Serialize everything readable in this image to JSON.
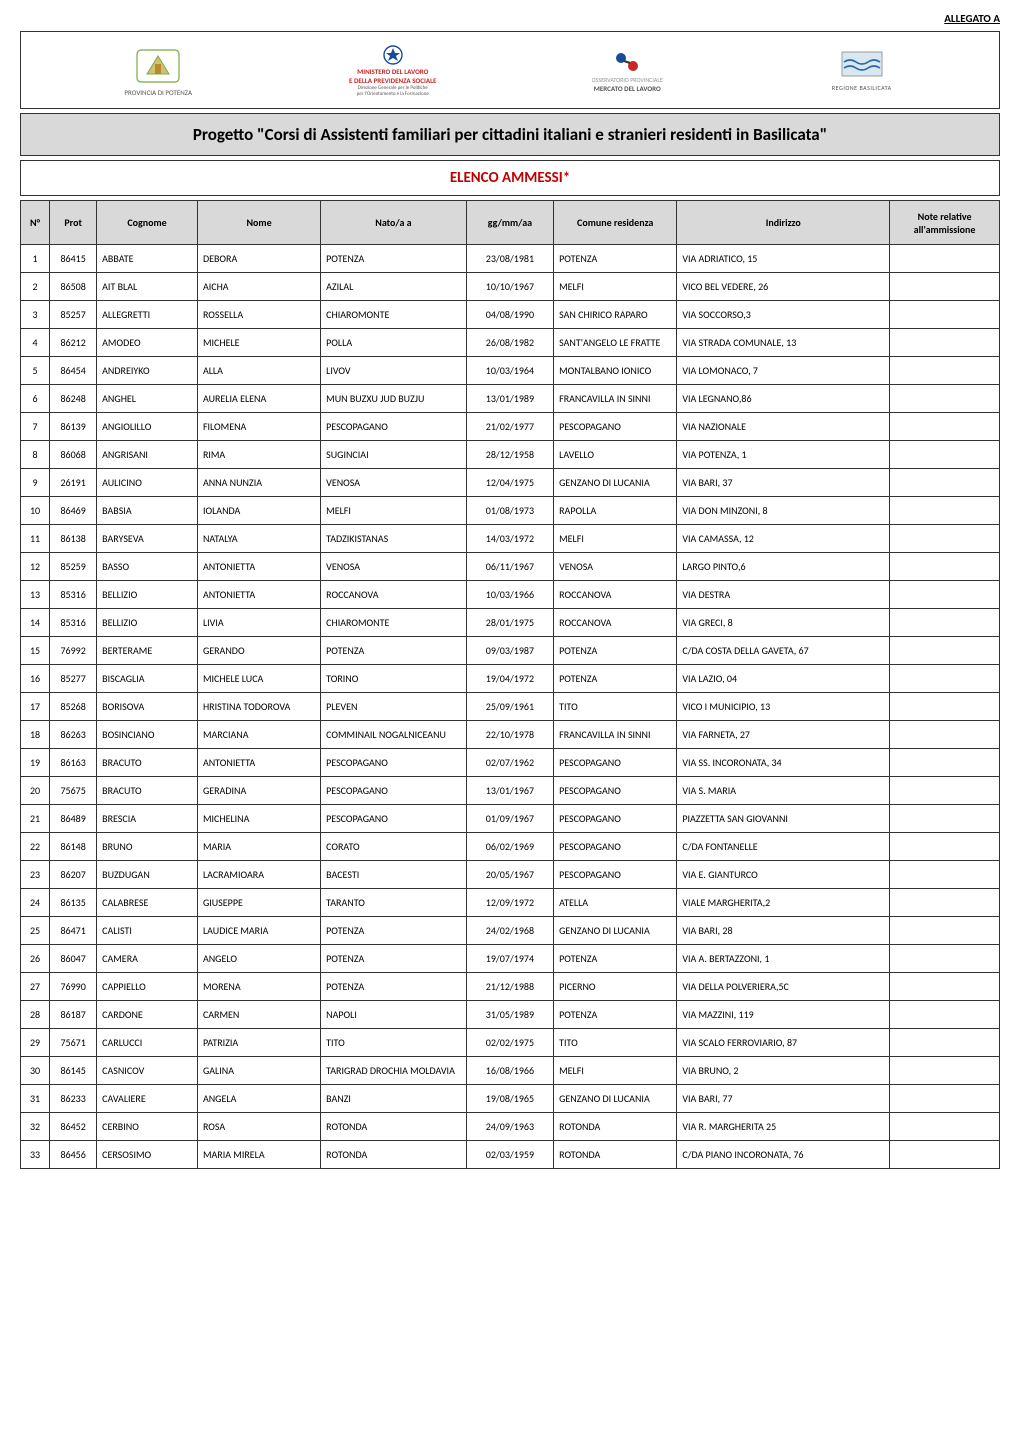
{
  "allegato": "ALLEGATO A",
  "logos": {
    "provincia_caption": "PROVINCIA DI POTENZA",
    "ministero_line1": "MINISTERO DEL LAVORO",
    "ministero_line2": "E DELLA PREVIDENZA SOCIALE",
    "ministero_line3": "Direzione Generale per le Politiche",
    "ministero_line4": "per l'Orientamento e la Formazione",
    "mercato_line1": "OSSERVATORIO PROVINCIALE",
    "mercato_line2": "MERCATO DEL LAVORO",
    "regione_caption": "REGIONE BASILICATA"
  },
  "title": "Progetto \"Corsi di Assistenti familiari per cittadini italiani e stranieri residenti in Basilicata\"",
  "subtitle": "ELENCO AMMESSI*",
  "colors": {
    "header_bg": "#d9d9d9",
    "border": "#333333",
    "subtitle_text": "#c00000",
    "page_bg": "#ffffff"
  },
  "table": {
    "columns": [
      "N°",
      "Prot",
      "Cognome",
      "Nome",
      "Nato/a  a",
      "gg/mm/aa",
      "Comune residenza",
      "Indirizzo",
      "Note relative all'ammissione"
    ],
    "rows": [
      [
        "1",
        "86415",
        "ABBATE",
        "DEBORA",
        "POTENZA",
        "23/08/1981",
        "POTENZA",
        "VIA  ADRIATICO, 15",
        ""
      ],
      [
        "2",
        "86508",
        "AIT BLAL",
        "AICHA",
        "AZILAL",
        "10/10/1967",
        "MELFI",
        "VICO BEL VEDERE, 26",
        ""
      ],
      [
        "3",
        "85257",
        "ALLEGRETTI",
        "ROSSELLA",
        "CHIAROMONTE",
        "04/08/1990",
        "SAN CHIRICO RAPARO",
        "VIA SOCCORSO,3",
        ""
      ],
      [
        "4",
        "86212",
        "AMODEO",
        "MICHELE",
        "POLLA",
        "26/08/1982",
        "SANT'ANGELO LE FRATTE",
        "VIA STRADA COMUNALE, 13",
        ""
      ],
      [
        "5",
        "86454",
        "ANDREIYKO",
        "ALLA",
        "LIVOV",
        "10/03/1964",
        "MONTALBANO IONICO",
        "VIA LOMONACO, 7",
        ""
      ],
      [
        "6",
        "86248",
        "ANGHEL",
        "AURELIA ELENA",
        "MUN BUZXU JUD BUZJU",
        "13/01/1989",
        "FRANCAVILLA IN SINNI",
        "VIA LEGNANO,86",
        ""
      ],
      [
        "7",
        "86139",
        "ANGIOLILLO",
        "FILOMENA",
        "PESCOPAGANO",
        "21/02/1977",
        "PESCOPAGANO",
        "VIA NAZIONALE",
        ""
      ],
      [
        "8",
        "86068",
        "ANGRISANI",
        "RIMA",
        "SUGINCIAI",
        "28/12/1958",
        "LAVELLO",
        "VIA POTENZA, 1",
        ""
      ],
      [
        "9",
        "26191",
        "AULICINO",
        "ANNA NUNZIA",
        "VENOSA",
        "12/04/1975",
        "GENZANO DI LUCANIA",
        "VIA  BARI, 37",
        ""
      ],
      [
        "10",
        "86469",
        "BABSIA",
        "IOLANDA",
        "MELFI",
        "01/08/1973",
        "RAPOLLA",
        "VIA DON MINZONI, 8",
        ""
      ],
      [
        "11",
        "86138",
        "BARYSEVA",
        "NATALYA",
        "TADZIKISTANAS",
        "14/03/1972",
        "MELFI",
        "VIA  CAMASSA, 12",
        ""
      ],
      [
        "12",
        "85259",
        "BASSO",
        "ANTONIETTA",
        "VENOSA",
        "06/11/1967",
        "VENOSA",
        "LARGO PINTO,6",
        ""
      ],
      [
        "13",
        "85316",
        "BELLIZIO",
        "ANTONIETTA",
        "ROCCANOVA",
        "10/03/1966",
        "ROCCANOVA",
        "VIA DESTRA",
        ""
      ],
      [
        "14",
        "85316",
        "BELLIZIO",
        "LIVIA",
        "CHIAROMONTE",
        "28/01/1975",
        "ROCCANOVA",
        "VIA GRECI, 8",
        ""
      ],
      [
        "15",
        "76992",
        "BERTERAME",
        "GERANDO",
        "POTENZA",
        "09/03/1987",
        "POTENZA",
        "C/DA COSTA DELLA GAVETA, 67",
        ""
      ],
      [
        "16",
        "85277",
        "BISCAGLIA",
        "MICHELE LUCA",
        "TORINO",
        "19/04/1972",
        "POTENZA",
        "VIA LAZIO, 04",
        ""
      ],
      [
        "17",
        "85268",
        "BORISOVA",
        "HRISTINA TODOROVA",
        "PLEVEN",
        "25/09/1961",
        "TITO",
        "VICO I MUNICIPIO, 13",
        ""
      ],
      [
        "18",
        "86263",
        "BOSINCIANO",
        "MARCIANA",
        "COMMINAIL NOGALNICEANU",
        "22/10/1978",
        "FRANCAVILLA IN SINNI",
        "VIA FARNETA, 27",
        ""
      ],
      [
        "19",
        "86163",
        "BRACUTO",
        "ANTONIETTA",
        "PESCOPAGANO",
        "02/07/1962",
        "PESCOPAGANO",
        "VIA SS. INCORONATA, 34",
        ""
      ],
      [
        "20",
        "75675",
        "BRACUTO",
        "GERADINA",
        "PESCOPAGANO",
        "13/01/1967",
        "PESCOPAGANO",
        "VIA S. MARIA",
        ""
      ],
      [
        "21",
        "86489",
        "BRESCIA",
        "MICHELINA",
        "PESCOPAGANO",
        "01/09/1967",
        "PESCOPAGANO",
        "PIAZZETTA SAN GIOVANNI",
        ""
      ],
      [
        "22",
        "86148",
        "BRUNO",
        "MARIA",
        "CORATO",
        "06/02/1969",
        "PESCOPAGANO",
        "C/DA FONTANELLE",
        ""
      ],
      [
        "23",
        "86207",
        "BUZDUGAN",
        "LACRAMIOARA",
        "BACESTI",
        "20/05/1967",
        "PESCOPAGANO",
        "VIA E. GIANTURCO",
        ""
      ],
      [
        "24",
        "86135",
        "CALABRESE",
        "GIUSEPPE",
        "TARANTO",
        "12/09/1972",
        "ATELLA",
        "VIALE MARGHERITA,2",
        ""
      ],
      [
        "25",
        "86471",
        "CALISTI",
        "LAUDICE MARIA",
        "POTENZA",
        "24/02/1968",
        "GENZANO DI LUCANIA",
        "VIA BARI, 28",
        ""
      ],
      [
        "26",
        "86047",
        "CAMERA",
        "ANGELO",
        "POTENZA",
        "19/07/1974",
        "POTENZA",
        "VIA A. BERTAZZONI, 1",
        ""
      ],
      [
        "27",
        "76990",
        "CAPPIELLO",
        "MORENA",
        "POTENZA",
        "21/12/1988",
        "PICERNO",
        "VIA DELLA POLVERIERA,5C",
        ""
      ],
      [
        "28",
        "86187",
        "CARDONE",
        "CARMEN",
        "NAPOLI",
        "31/05/1989",
        "POTENZA",
        "VIA MAZZINI, 119",
        ""
      ],
      [
        "29",
        "75671",
        "CARLUCCI",
        "PATRIZIA",
        "TITO",
        "02/02/1975",
        "TITO",
        "VIA SCALO FERROVIARIO, 87",
        ""
      ],
      [
        "30",
        "86145",
        "CASNICOV",
        "GALINA",
        "TARIGRAD DROCHIA MOLDAVIA",
        "16/08/1966",
        "MELFI",
        "VIA BRUNO, 2",
        ""
      ],
      [
        "31",
        "86233",
        "CAVALIERE",
        "ANGELA",
        "BANZI",
        "19/08/1965",
        "GENZANO DI LUCANIA",
        "VIA BARI, 77",
        ""
      ],
      [
        "32",
        "86452",
        "CERBINO",
        "ROSA",
        "ROTONDA",
        "24/09/1963",
        "ROTONDA",
        "VIA R. MARGHERITA 25",
        ""
      ],
      [
        "33",
        "86456",
        "CERSOSIMO",
        "MARIA MIRELA",
        "ROTONDA",
        "02/03/1959",
        "ROTONDA",
        "C/DA PIANO INCORONATA, 76",
        ""
      ]
    ]
  }
}
